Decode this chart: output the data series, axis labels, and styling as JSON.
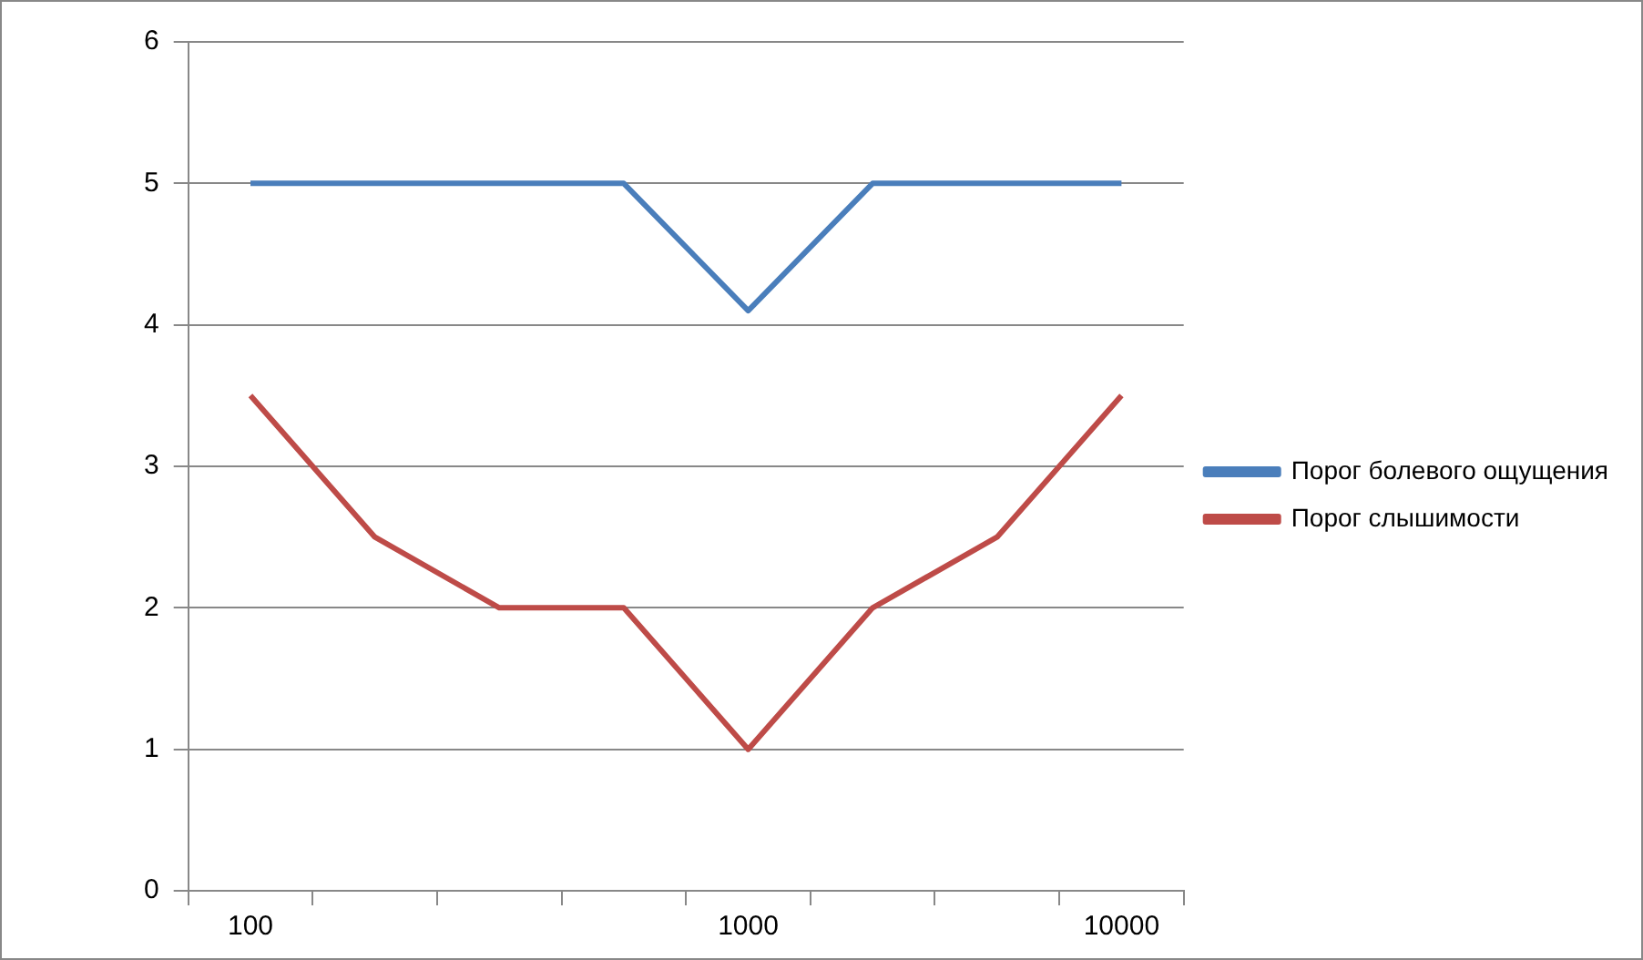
{
  "chart_data": {
    "type": "line",
    "categories": [
      "100",
      null,
      null,
      null,
      "1000",
      null,
      null,
      "10000"
    ],
    "series": [
      {
        "name": "Порог болевого ощущения",
        "color": "#4a7ebb",
        "values": [
          5,
          5,
          5,
          5,
          4.1,
          5,
          5,
          5
        ]
      },
      {
        "name": "Порог слышимости",
        "color": "#be4b48",
        "values": [
          3.5,
          2.5,
          2,
          2,
          1,
          2,
          2.5,
          3.5
        ]
      }
    ],
    "ylim": [
      0,
      6
    ],
    "yticks": [
      0,
      1,
      2,
      3,
      4,
      5,
      6
    ],
    "grid": "y",
    "legend": "right",
    "marker": "none",
    "line_style": "solid"
  }
}
